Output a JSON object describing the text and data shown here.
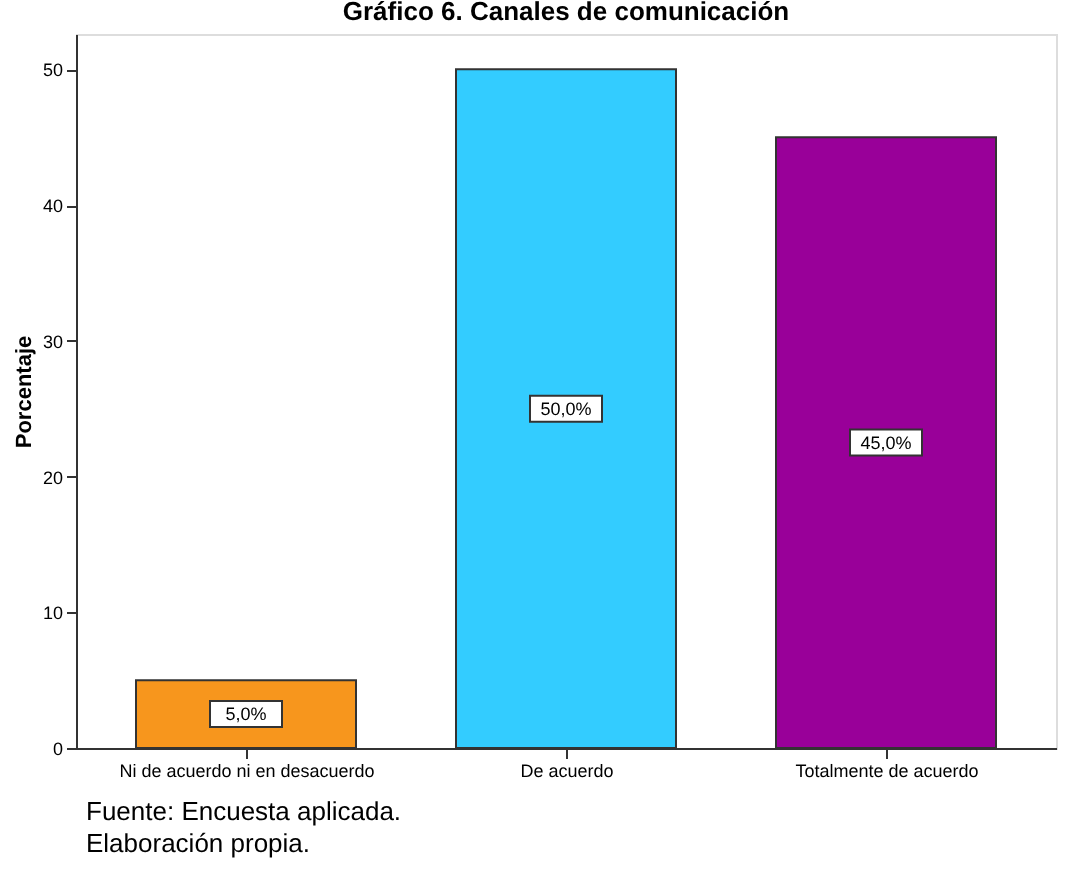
{
  "chart_data": {
    "type": "bar",
    "title": "Gráfico 6. Canales de comunicación",
    "ylabel": "Porcentaje",
    "categories": [
      "Ni de acuerdo ni en desacuerdo",
      "De acuerdo",
      "Totalmente de acuerdo"
    ],
    "values": [
      5.0,
      50.0,
      45.0
    ],
    "colors": [
      "#f7961d",
      "#33ccff",
      "#990099"
    ],
    "value_labels": [
      "5,0%",
      "50,0%",
      "45,0%"
    ],
    "ylim": [
      0,
      52.6
    ],
    "yticks": [
      0,
      10,
      20,
      30,
      40,
      50
    ],
    "grid": false,
    "annotations": [
      "Fuente: Encuesta aplicada.",
      "Elaboración propia."
    ]
  }
}
